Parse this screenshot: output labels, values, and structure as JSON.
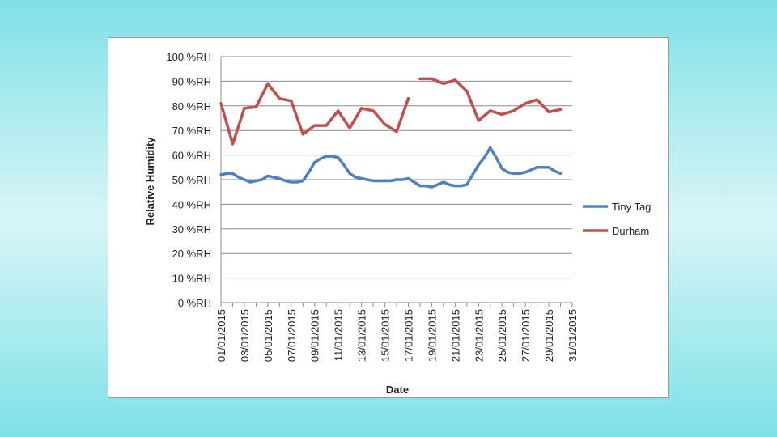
{
  "chart_data": {
    "type": "line",
    "title": "",
    "xlabel": "Date",
    "ylabel": "Relative Humidity",
    "ylim": [
      0,
      100
    ],
    "y_ticks": [
      "0 %RH",
      "10 %RH",
      "20 %RH",
      "30 %RH",
      "40 %RH",
      "50 %RH",
      "60 %RH",
      "70 %RH",
      "80 %RH",
      "90 %RH",
      "100 %RH"
    ],
    "x_ticks": [
      "01/01/2015",
      "03/01/2015",
      "05/01/2015",
      "07/01/2015",
      "09/01/2015",
      "11/01/2015",
      "13/01/2015",
      "15/01/2015",
      "17/01/2015",
      "19/01/2015",
      "21/01/2015",
      "23/01/2015",
      "25/01/2015",
      "27/01/2015",
      "29/01/2015",
      "31/01/2015"
    ],
    "x_day_range": [
      1,
      31
    ],
    "grid": true,
    "legend_position": "right",
    "series": [
      {
        "name": "Tiny Tag",
        "color": "#4f81bd",
        "points": [
          [
            1,
            52
          ],
          [
            1.5,
            52.5
          ],
          [
            2,
            52.5
          ],
          [
            2.5,
            51
          ],
          [
            3,
            50
          ],
          [
            3.5,
            49
          ],
          [
            4,
            49.5
          ],
          [
            4.5,
            50
          ],
          [
            5,
            51.5
          ],
          [
            5.5,
            51
          ],
          [
            6,
            50.5
          ],
          [
            6.5,
            49.5
          ],
          [
            7,
            49
          ],
          [
            7.5,
            49
          ],
          [
            8,
            49.5
          ],
          [
            8.5,
            53
          ],
          [
            9,
            57
          ],
          [
            9.5,
            58.5
          ],
          [
            10,
            59.5
          ],
          [
            10.5,
            59.5
          ],
          [
            11,
            59
          ],
          [
            11.5,
            56
          ],
          [
            12,
            52.5
          ],
          [
            12.5,
            51
          ],
          [
            13,
            50.5
          ],
          [
            13.5,
            50
          ],
          [
            14,
            49.5
          ],
          [
            14.5,
            49.5
          ],
          [
            15,
            49.5
          ],
          [
            15.5,
            49.5
          ],
          [
            16,
            50
          ],
          [
            16.5,
            50
          ],
          [
            17,
            50.5
          ],
          [
            17.5,
            49
          ],
          [
            18,
            47.5
          ],
          [
            18.5,
            47.5
          ],
          [
            19,
            47
          ],
          [
            19.5,
            48
          ],
          [
            20,
            49
          ],
          [
            20.5,
            48
          ],
          [
            21,
            47.5
          ],
          [
            21.5,
            47.5
          ],
          [
            22,
            48
          ],
          [
            22.5,
            52
          ],
          [
            23,
            56
          ],
          [
            23.5,
            59
          ],
          [
            24,
            63
          ],
          [
            24.5,
            59
          ],
          [
            25,
            54.5
          ],
          [
            25.5,
            53
          ],
          [
            26,
            52.5
          ],
          [
            26.5,
            52.5
          ],
          [
            27,
            53
          ],
          [
            27.5,
            54
          ],
          [
            28,
            55
          ],
          [
            28.5,
            55
          ],
          [
            29,
            55
          ],
          [
            29.5,
            53.5
          ],
          [
            30,
            52.5
          ]
        ]
      },
      {
        "name": "Durham",
        "color": "#c0504d",
        "segments": [
          [
            [
              1,
              81
            ],
            [
              2,
              64.5
            ],
            [
              3,
              79
            ],
            [
              4,
              79.5
            ],
            [
              5,
              89
            ],
            [
              6,
              83
            ],
            [
              7,
              82
            ],
            [
              8,
              68.5
            ],
            [
              9,
              72
            ],
            [
              10,
              72
            ],
            [
              11,
              78
            ],
            [
              12,
              71
            ],
            [
              13,
              79
            ],
            [
              14,
              78
            ],
            [
              15,
              72.5
            ],
            [
              16,
              69.5
            ],
            [
              17,
              83
            ]
          ],
          [
            [
              18,
              91
            ],
            [
              19,
              91
            ],
            [
              20,
              89
            ],
            [
              21,
              90.5
            ],
            [
              22,
              86
            ],
            [
              23,
              74
            ],
            [
              24,
              78
            ],
            [
              25,
              76.5
            ],
            [
              26,
              78
            ],
            [
              27,
              81
            ],
            [
              28,
              82.5
            ],
            [
              29,
              77.5
            ],
            [
              30,
              78.5
            ]
          ]
        ]
      }
    ]
  }
}
